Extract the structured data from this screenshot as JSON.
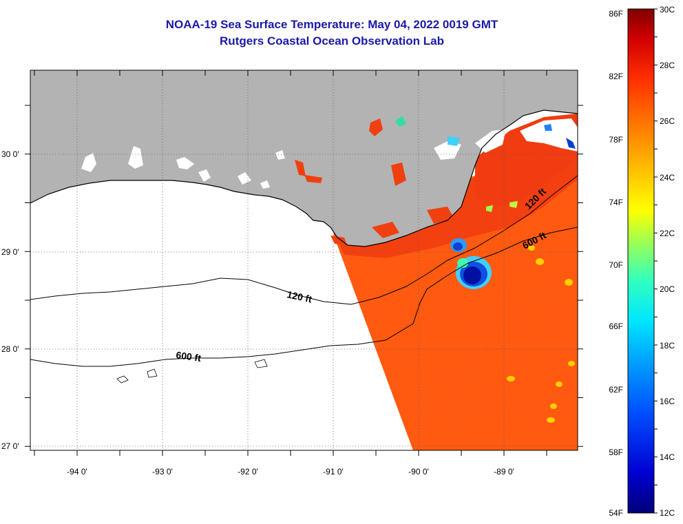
{
  "header": {
    "title": "NOAA-19 Sea Surface Temperature:  May 04, 2022 0019 GMT",
    "subtitle": "Rutgers Coastal Ocean Observation Lab"
  },
  "map": {
    "lon_range": [
      -94.55,
      -88.0
    ],
    "lat_range": [
      26.95,
      30.85
    ],
    "lon_ticks": [
      {
        "value": -94,
        "label": "-94 0'"
      },
      {
        "value": -93,
        "label": "-93 0'"
      },
      {
        "value": -92,
        "label": "-92 0'"
      },
      {
        "value": -91,
        "label": "-91 0'"
      },
      {
        "value": -90,
        "label": "-90 0'"
      },
      {
        "value": -89,
        "label": "-89 0'"
      }
    ],
    "lat_ticks": [
      {
        "value": 30,
        "label": "30 0'"
      },
      {
        "value": 29,
        "label": "29 0'"
      },
      {
        "value": 28,
        "label": "28 0'"
      },
      {
        "value": 27,
        "label": "27 0'"
      }
    ],
    "contours": [
      {
        "label": "120 ft"
      },
      {
        "label": "600 ft"
      },
      {
        "label": "120 ft"
      },
      {
        "label": "600 ft"
      }
    ],
    "land_color": "#b3b3b3",
    "cloud_color": "#ffffff",
    "sst_dominant_color": "#ff5a14"
  },
  "colorbar": {
    "range_c": [
      12,
      30
    ],
    "range_f": [
      54,
      86
    ],
    "celsius_labels": [
      "30C",
      "28C",
      "26C",
      "24C",
      "22C",
      "20C",
      "18C",
      "16C",
      "14C",
      "12C"
    ],
    "fahrenheit_labels": [
      "86F",
      "82F",
      "78F",
      "74F",
      "70F",
      "66F",
      "62F",
      "58F",
      "54F"
    ]
  }
}
